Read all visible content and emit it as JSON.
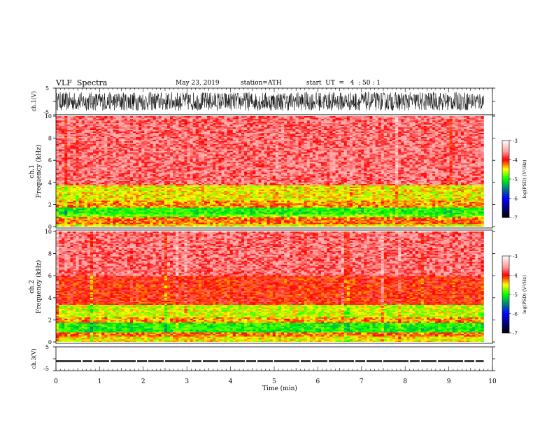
{
  "header": {
    "title": "VLF  Spectra",
    "date": "May 23, 2019",
    "station": "station=ATH",
    "start": "start  UT  =   4  : 50 : 1"
  },
  "chart_data": [
    {
      "type": "line",
      "name": "ch1-waveform",
      "ylabel": "ch.1(V)",
      "ylim": [
        -5,
        5
      ],
      "ytick_labels": [
        "-5",
        "5"
      ],
      "xlim": [
        0,
        10
      ],
      "trace_amplitude": [
        -3.5,
        3.5
      ]
    },
    {
      "type": "heatmap",
      "name": "ch1-spectrogram",
      "ylabel_line1": "ch.1",
      "ylabel_line2": "Frequency  (kHz)",
      "ylim": [
        0,
        10
      ],
      "yticks": [
        0,
        2,
        4,
        6,
        8,
        10
      ],
      "xlim": [
        0,
        9.8
      ],
      "bands": [
        {
          "from": 0.0,
          "to": 0.3,
          "level": -4.5
        },
        {
          "from": 0.3,
          "to": 0.9,
          "level": -4.2
        },
        {
          "from": 0.9,
          "to": 1.1,
          "level": -4.8
        },
        {
          "from": 1.1,
          "to": 1.8,
          "level": -5.0
        },
        {
          "from": 1.8,
          "to": 2.4,
          "level": -4.3
        },
        {
          "from": 2.4,
          "to": 3.8,
          "level": -4.5
        },
        {
          "from": 3.8,
          "to": 10.0,
          "level": -3.7
        }
      ],
      "colorbar": {
        "label": "log(PSD) (V²/Hz)",
        "ticks": [
          "-3",
          "-4",
          "-5",
          "-6",
          "-7"
        ],
        "range": [
          -7,
          -3
        ]
      }
    },
    {
      "type": "heatmap",
      "name": "ch2-spectrogram",
      "ylabel_line1": "ch.2",
      "ylabel_line2": "Frequency  (kHz)",
      "ylim": [
        0,
        10
      ],
      "yticks": [
        0,
        2,
        4,
        6,
        8,
        10
      ],
      "xlim": [
        0,
        9.8
      ],
      "bands": [
        {
          "from": 0.0,
          "to": 0.5,
          "level": -4.5
        },
        {
          "from": 0.5,
          "to": 0.9,
          "level": -4.2
        },
        {
          "from": 0.9,
          "to": 1.8,
          "level": -5.0
        },
        {
          "from": 1.8,
          "to": 2.2,
          "level": -4.3
        },
        {
          "from": 2.2,
          "to": 3.4,
          "level": -4.6
        },
        {
          "from": 3.4,
          "to": 6.0,
          "level": -4.0
        },
        {
          "from": 6.0,
          "to": 10.0,
          "level": -3.7
        }
      ],
      "colorbar": {
        "label": "log(PSD) (V²/Hz)",
        "ticks": [
          "-3",
          "-4",
          "-5",
          "-6",
          "-7"
        ],
        "range": [
          -7,
          -3
        ]
      }
    },
    {
      "type": "line",
      "name": "ch3-waveform",
      "ylabel": "ch.3(V)",
      "ylim": [
        -5,
        5
      ],
      "ytick_labels": [
        "-5",
        "5"
      ],
      "xlim": [
        0,
        10
      ],
      "trace_level": -1
    }
  ],
  "xaxis": {
    "label": "Time  (min)",
    "ticks": [
      "0",
      "1",
      "2",
      "3",
      "4",
      "5",
      "6",
      "7",
      "8",
      "9",
      "10"
    ],
    "xlim": [
      0,
      10
    ]
  },
  "colors": {
    "colorbar": [
      "#ffffff",
      "#ff0000",
      "#ffff00",
      "#00ff00",
      "#0000ff",
      "#000000"
    ]
  }
}
